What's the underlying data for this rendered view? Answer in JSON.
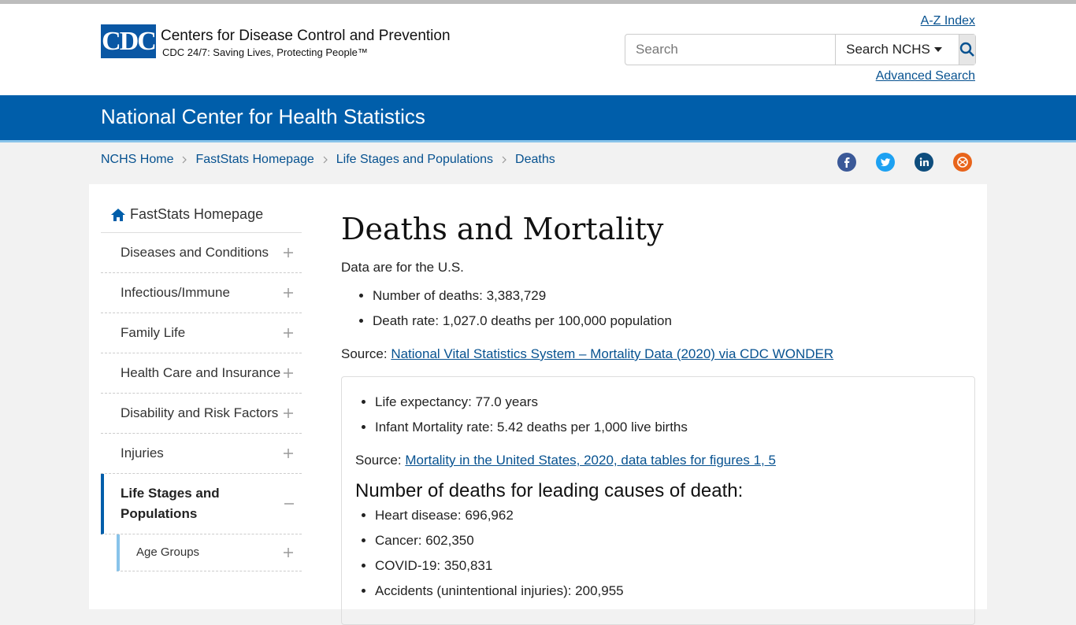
{
  "header": {
    "logo": "CDC",
    "org_name": "Centers for Disease Control and Prevention",
    "tagline": "CDC 24/7: Saving Lives, Protecting People™",
    "az_index": "A-Z Index",
    "search_placeholder": "Search",
    "search_scope": "Search NCHS",
    "advanced_search": "Advanced Search"
  },
  "banner": {
    "title": "National Center for Health Statistics"
  },
  "breadcrumbs": [
    "NCHS Home",
    "FastStats Homepage",
    "Life Stages and Populations",
    "Deaths"
  ],
  "sidebar": {
    "home": "FastStats Homepage",
    "items": [
      "Diseases and Conditions",
      "Infectious/Immune",
      "Family Life",
      "Health Care and Insurance",
      "Disability and Risk Factors",
      "Injuries",
      "Life Stages and Populations"
    ],
    "subitems": [
      "Age Groups"
    ]
  },
  "main": {
    "title": "Deaths and Mortality",
    "intro": "Data are for the U.S.",
    "bullets": [
      "Number of deaths: 3,383,729",
      "Death rate: 1,027.0 deaths per 100,000 population"
    ],
    "source_label": "Source:",
    "source_link": "National Vital Statistics System – Mortality Data (2020) via CDC WONDER",
    "box": {
      "bullets": [
        "Life expectancy: 77.0 years",
        "Infant Mortality rate: 5.42 deaths per 1,000 live births"
      ],
      "source_label": "Source:",
      "source_link": "Mortality in the United States, 2020, data tables for figures 1, 5",
      "heading": "Number of deaths for leading causes of death:",
      "causes": [
        "Heart disease: 696,962",
        "Cancer: 602,350",
        "COVID-19: 350,831",
        "Accidents (unintentional injuries): 200,955"
      ]
    }
  }
}
